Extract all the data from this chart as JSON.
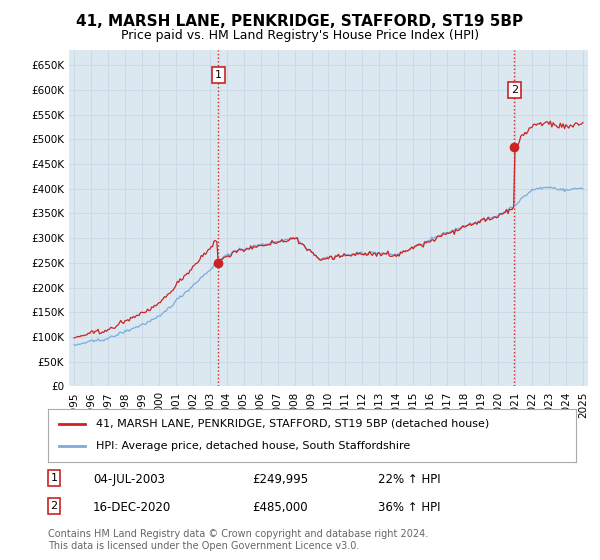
{
  "title": "41, MARSH LANE, PENKRIDGE, STAFFORD, ST19 5BP",
  "subtitle": "Price paid vs. HM Land Registry's House Price Index (HPI)",
  "ylim": [
    0,
    680000
  ],
  "yticks": [
    0,
    50000,
    100000,
    150000,
    200000,
    250000,
    300000,
    350000,
    400000,
    450000,
    500000,
    550000,
    600000,
    650000
  ],
  "ytick_labels": [
    "£0",
    "£50K",
    "£100K",
    "£150K",
    "£200K",
    "£250K",
    "£300K",
    "£350K",
    "£400K",
    "£450K",
    "£500K",
    "£550K",
    "£600K",
    "£650K"
  ],
  "xlim_start": 1994.7,
  "xlim_end": 2025.3,
  "xticks": [
    1995,
    1996,
    1997,
    1998,
    1999,
    2000,
    2001,
    2002,
    2003,
    2004,
    2005,
    2006,
    2007,
    2008,
    2009,
    2010,
    2011,
    2012,
    2013,
    2014,
    2015,
    2016,
    2017,
    2018,
    2019,
    2020,
    2021,
    2022,
    2023,
    2024,
    2025
  ],
  "hpi_color": "#7aaddc",
  "price_color": "#cc2222",
  "vline_color": "#cc2222",
  "grid_color": "#c8d8e8",
  "background_color": "#ffffff",
  "plot_bg_color": "#dce8f0",
  "legend_label_price": "41, MARSH LANE, PENKRIDGE, STAFFORD, ST19 5BP (detached house)",
  "legend_label_hpi": "HPI: Average price, detached house, South Staffordshire",
  "annotation1_label": "1",
  "annotation1_date": "04-JUL-2003",
  "annotation1_price": "£249,995",
  "annotation1_pct": "22% ↑ HPI",
  "annotation1_year": 2003.5,
  "annotation1_value": 249995,
  "annotation2_label": "2",
  "annotation2_date": "16-DEC-2020",
  "annotation2_price": "£485,000",
  "annotation2_pct": "36% ↑ HPI",
  "annotation2_year": 2020.95,
  "annotation2_value": 485000,
  "footer": "Contains HM Land Registry data © Crown copyright and database right 2024.\nThis data is licensed under the Open Government Licence v3.0.",
  "title_fontsize": 11,
  "subtitle_fontsize": 9,
  "tick_fontsize": 7.5,
  "legend_fontsize": 8,
  "footer_fontsize": 7
}
